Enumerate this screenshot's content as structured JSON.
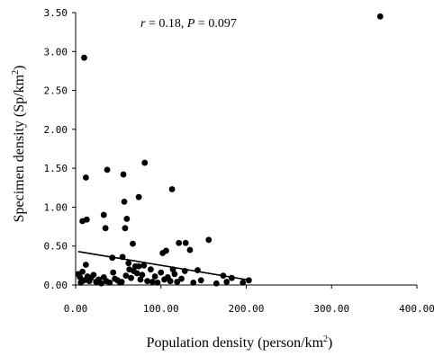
{
  "chart_data": {
    "type": "scatter",
    "xlabel": "Population density (person/km",
    "xlabel_sup": "2",
    "xlabel_close": ")",
    "ylabel": "Specimen density (Sp/km",
    "ylabel_sup": "2",
    "ylabel_close": ")",
    "annotation": {
      "r_label": "r",
      "r_text": " = 0.18,  ",
      "p_label": "P",
      "p_text": " = 0.097"
    },
    "xlim": [
      0,
      400
    ],
    "ylim": [
      0,
      3.5
    ],
    "x_ticks": [
      0,
      100,
      200,
      300,
      400
    ],
    "y_ticks": [
      0,
      0.5,
      1,
      1.5,
      2,
      2.5,
      3,
      3.5
    ],
    "x_tick_labels": [
      "0.00",
      "100.00",
      "200.00",
      "300.00",
      "400.00"
    ],
    "y_tick_labels": [
      "0.00",
      "0.50",
      "1.00",
      "1.50",
      "2.00",
      "2.50",
      "3.00",
      "3.50"
    ],
    "marker_color": "#000000",
    "trendline": {
      "x": [
        3,
        205
      ],
      "y": [
        0.43,
        0.06
      ]
    },
    "points": [
      [
        10,
        2.92
      ],
      [
        357,
        3.45
      ],
      [
        12,
        1.38
      ],
      [
        37,
        1.48
      ],
      [
        56,
        1.42
      ],
      [
        81,
        1.57
      ],
      [
        113,
        1.23
      ],
      [
        57,
        1.07
      ],
      [
        74,
        1.13
      ],
      [
        8,
        0.82
      ],
      [
        13,
        0.84
      ],
      [
        33,
        0.9
      ],
      [
        60,
        0.85
      ],
      [
        35,
        0.73
      ],
      [
        58,
        0.73
      ],
      [
        67,
        0.53
      ],
      [
        121,
        0.54
      ],
      [
        129,
        0.54
      ],
      [
        156,
        0.58
      ],
      [
        102,
        0.41
      ],
      [
        106,
        0.44
      ],
      [
        134,
        0.45
      ],
      [
        43,
        0.35
      ],
      [
        55,
        0.36
      ],
      [
        62,
        0.28
      ],
      [
        74,
        0.24
      ],
      [
        80,
        0.25
      ],
      [
        88,
        0.2
      ],
      [
        100,
        0.16
      ],
      [
        114,
        0.2
      ],
      [
        128,
        0.18
      ],
      [
        143,
        0.19
      ],
      [
        173,
        0.12
      ],
      [
        183,
        0.09
      ],
      [
        203,
        0.06
      ],
      [
        3,
        0.14
      ],
      [
        5,
        0.1
      ],
      [
        6,
        0.03
      ],
      [
        8,
        0.17
      ],
      [
        10,
        0.06
      ],
      [
        12,
        0.26
      ],
      [
        14,
        0.11
      ],
      [
        16,
        0.05
      ],
      [
        18,
        0.09
      ],
      [
        21,
        0.13
      ],
      [
        24,
        0.04
      ],
      [
        27,
        0.07
      ],
      [
        30,
        0.02
      ],
      [
        33,
        0.1
      ],
      [
        36,
        0.05
      ],
      [
        40,
        0.03
      ],
      [
        44,
        0.16
      ],
      [
        46,
        0.08
      ],
      [
        49,
        0.06
      ],
      [
        52,
        0.03
      ],
      [
        54,
        0.04
      ],
      [
        59,
        0.12
      ],
      [
        63,
        0.2
      ],
      [
        65,
        0.09
      ],
      [
        68,
        0.18
      ],
      [
        70,
        0.24
      ],
      [
        72,
        0.15
      ],
      [
        76,
        0.07
      ],
      [
        78,
        0.13
      ],
      [
        84,
        0.05
      ],
      [
        90,
        0.04
      ],
      [
        93,
        0.11
      ],
      [
        96,
        0.03
      ],
      [
        104,
        0.07
      ],
      [
        108,
        0.1
      ],
      [
        111,
        0.05
      ],
      [
        116,
        0.14
      ],
      [
        119,
        0.04
      ],
      [
        124,
        0.08
      ],
      [
        138,
        0.03
      ],
      [
        147,
        0.06
      ],
      [
        165,
        0.02
      ],
      [
        177,
        0.04
      ],
      [
        196,
        0.03
      ]
    ]
  }
}
